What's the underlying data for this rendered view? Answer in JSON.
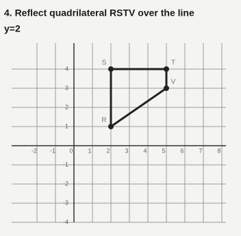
{
  "header": {
    "title_lines": [
      "4. Reflect quadrilateral RSTV over the line",
      "y=2"
    ]
  },
  "chart_data": {
    "type": "polygon",
    "x": [
      2,
      2,
      5,
      5
    ],
    "y": [
      1,
      4,
      4,
      3
    ],
    "point_labels": [
      "R",
      "S",
      "T",
      "V"
    ],
    "color": "#222222",
    "xlim": [
      -3,
      8
    ],
    "ylim": [
      -4,
      5
    ],
    "xticks": [
      -2,
      -1,
      0,
      1,
      2,
      3,
      4,
      5,
      6,
      7,
      8
    ],
    "yticks": [
      -4,
      -3,
      -2,
      -1,
      1,
      2,
      3,
      4
    ],
    "grid": true
  }
}
